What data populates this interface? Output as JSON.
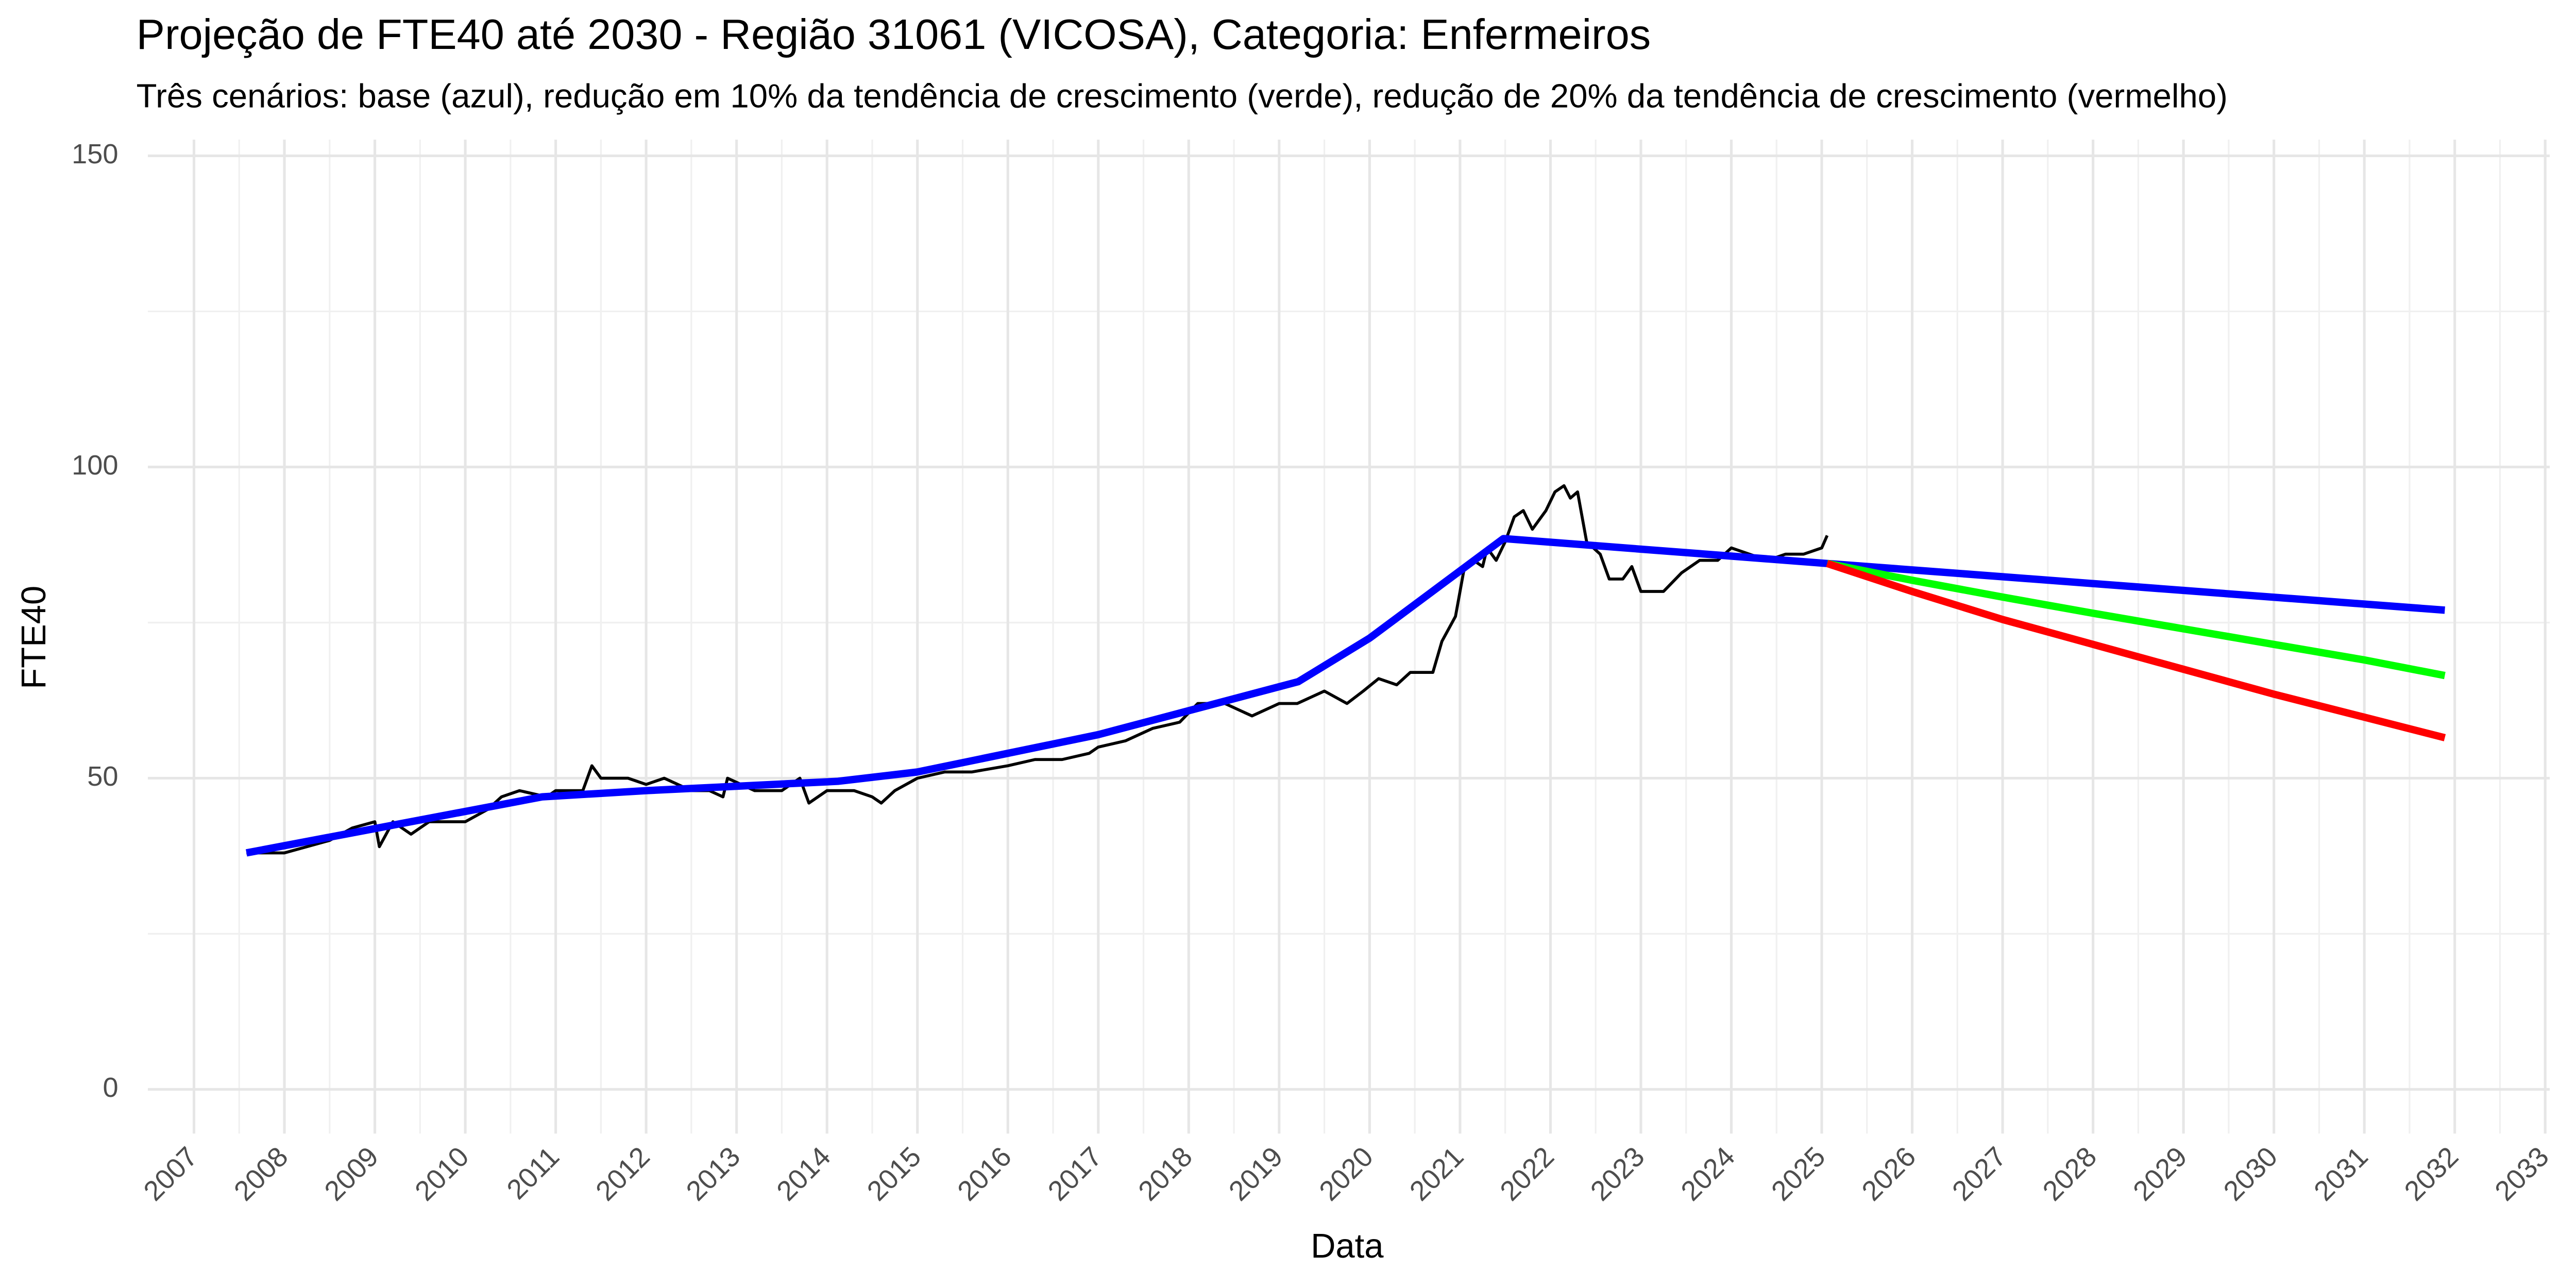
{
  "chart_data": {
    "type": "line",
    "title": "Projeção de FTE40 até 2030 - Região 31061 (VICOSA), Categoria: Enfermeiros",
    "subtitle": "Três cenários: base (azul), redução em 10% da tendência de crescimento (verde), redução de 20% da tendência de crescimento (vermelho)",
    "x_label": "Data",
    "y_label": "FTE40",
    "xlim": [
      2006.49,
      2033.05
    ],
    "xticks": [
      2007,
      2008,
      2009,
      2010,
      2011,
      2012,
      2013,
      2014,
      2015,
      2016,
      2017,
      2018,
      2019,
      2020,
      2021,
      2022,
      2023,
      2024,
      2025,
      2026,
      2027,
      2028,
      2029,
      2030,
      2031,
      2032,
      2033
    ],
    "ylim": [
      -7.1,
      152.6
    ],
    "yticks": [
      0,
      50,
      100,
      150
    ],
    "grid": true,
    "series": [
      {
        "color": "#000000",
        "width": "thin",
        "x": [
          2007.58,
          2007.75,
          2008,
          2008.25,
          2008.5,
          2008.75,
          2009,
          2009.05,
          2009.2,
          2009.4,
          2009.6,
          2009.8,
          2010,
          2010.25,
          2010.4,
          2010.6,
          2010.9,
          2011,
          2011.3,
          2011.4,
          2011.5,
          2011.8,
          2012,
          2012.2,
          2012.5,
          2012.7,
          2012.85,
          2012.9,
          2013.2,
          2013.5,
          2013.7,
          2013.8,
          2014,
          2014.3,
          2014.5,
          2014.6,
          2014.75,
          2015,
          2015.3,
          2015.6,
          2016,
          2016.3,
          2016.6,
          2016.9,
          2017,
          2017.3,
          2017.6,
          2017.9,
          2018.1,
          2018.4,
          2018.7,
          2019,
          2019.2,
          2019.5,
          2019.75,
          2019.93,
          2020.1,
          2020.3,
          2020.45,
          2020.7,
          2020.8,
          2020.95,
          2021.0,
          2021.05,
          2021.15,
          2021.25,
          2021.3,
          2021.4,
          2021.5,
          2021.6,
          2021.7,
          2021.8,
          2021.95,
          2022.05,
          2022.15,
          2022.22,
          2022.3,
          2022.4,
          2022.55,
          2022.65,
          2022.8,
          2022.9,
          2023.0,
          2023.25,
          2023.45,
          2023.65,
          2023.85,
          2024.0,
          2024.2,
          2024.4,
          2024.6,
          2024.8,
          2025.0,
          2025.06
        ],
        "values": [
          38,
          38,
          38,
          39,
          40,
          42,
          43,
          39,
          43,
          41,
          43,
          43,
          43,
          45,
          47,
          48,
          47,
          48,
          48,
          52,
          50,
          50,
          49,
          50,
          48,
          48,
          47,
          50,
          48,
          48,
          50,
          46,
          48,
          48,
          47,
          46,
          48,
          50,
          51,
          51,
          52,
          53,
          53,
          54,
          55,
          56,
          58,
          59,
          62,
          62,
          60,
          62,
          62,
          64,
          62,
          64,
          66,
          65,
          67,
          67,
          72,
          76,
          80,
          84,
          85,
          84,
          87,
          85,
          88,
          92,
          93,
          90,
          93,
          96,
          97,
          95,
          96,
          88,
          86,
          82,
          82,
          84,
          80,
          80,
          83,
          85,
          85,
          87,
          86,
          85,
          86,
          86,
          87,
          89
        ]
      },
      {
        "color": "#0000ff",
        "width": "thick",
        "x": [
          2007.58,
          2010.85,
          2012,
          2014.12,
          2015,
          2017,
          2019.21,
          2020,
          2021.48,
          2025.06,
          2031.89
        ],
        "values": [
          38,
          47,
          48,
          49.5,
          51,
          57,
          65.5,
          72.5,
          88.5,
          84.5,
          77
        ]
      },
      {
        "color": "#00ff00",
        "width": "thick",
        "x": [
          2025.06,
          2026,
          2027,
          2028,
          2029,
          2030,
          2031,
          2031.89
        ],
        "values": [
          84.5,
          81.8,
          79.1,
          76.5,
          74,
          71.5,
          69,
          66.5
        ]
      },
      {
        "color": "#ff0000",
        "width": "thick",
        "x": [
          2025.06,
          2026,
          2027,
          2028,
          2029,
          2030,
          2031,
          2031.89
        ],
        "values": [
          84.5,
          80,
          75.5,
          71.5,
          67.5,
          63.5,
          59.8,
          56.5
        ]
      }
    ]
  }
}
